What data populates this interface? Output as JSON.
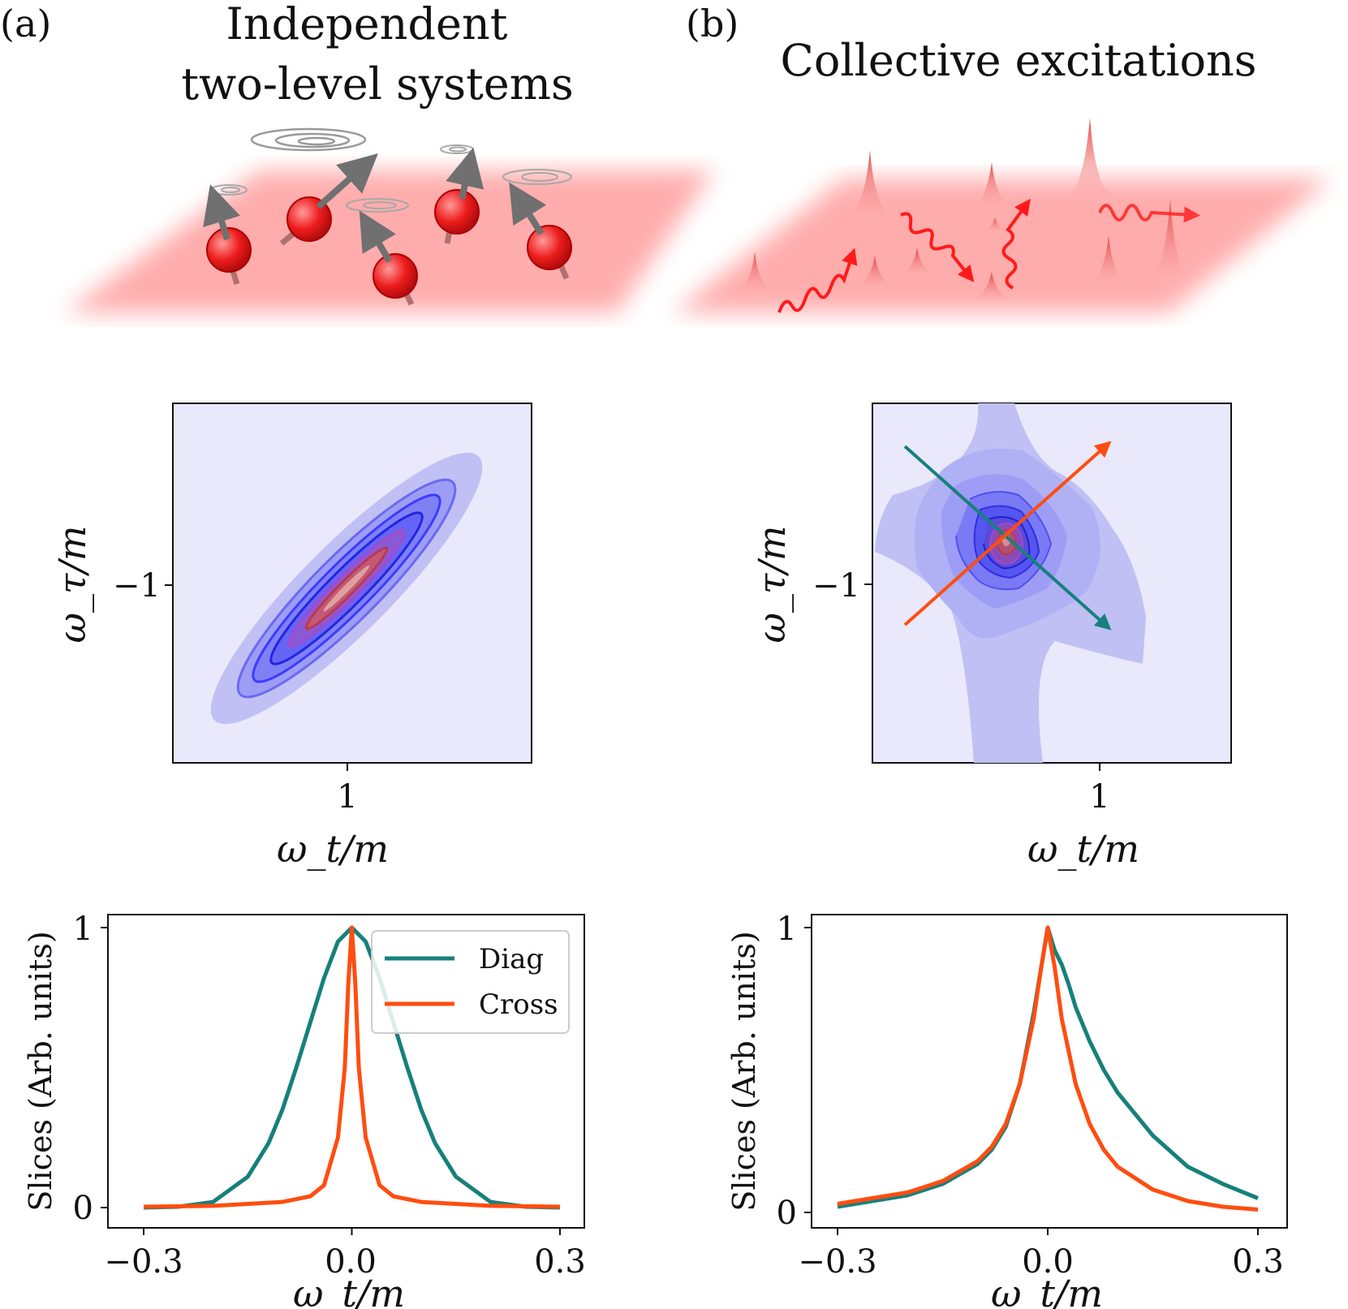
{
  "panels": {
    "a": {
      "label": "(a)",
      "title_line1": "Independent",
      "title_line2": "two-level systems"
    },
    "b": {
      "label": "(b)",
      "title": "Collective excitations"
    }
  },
  "colors": {
    "diag": "#17807b",
    "cross": "#ff4d10",
    "map_low": "#e9e9fb",
    "map_mid": "#3b3bff",
    "map_peak": "#c0384a",
    "glow": "#ff6a6a"
  },
  "icons": {
    "spin": "spin-arrow-icon",
    "swirl": "swirl-icon",
    "photon": "wavy-photon-icon",
    "peak": "excitation-peak-icon"
  },
  "maps": {
    "a": {
      "ylabel": "ω_τ/m",
      "xlabel": "ω_t/m",
      "ytick": "−1",
      "xtick": "1"
    },
    "b": {
      "ylabel": "ω_τ/m",
      "xlabel": "ω_t/m",
      "ytick": "−1",
      "xtick": "1"
    }
  },
  "chart_data": [
    {
      "type": "line",
      "panel": "a",
      "xlabel": "ω_t/m",
      "ylabel": "Slices (Arb. units)",
      "xlim": [
        -0.3,
        0.3
      ],
      "ylim": [
        0,
        1
      ],
      "xticks": [
        "−0.3",
        "0.0",
        "0.3"
      ],
      "yticks": [
        "0",
        "1"
      ],
      "legend": "top-right",
      "series": [
        {
          "name": "Diag",
          "color": "#17807b",
          "x": [
            -0.3,
            -0.25,
            -0.2,
            -0.15,
            -0.12,
            -0.1,
            -0.08,
            -0.06,
            -0.04,
            -0.02,
            0,
            0.02,
            0.04,
            0.06,
            0.08,
            0.1,
            0.12,
            0.15,
            0.2,
            0.25,
            0.3
          ],
          "y": [
            0.0,
            0.003,
            0.02,
            0.11,
            0.23,
            0.35,
            0.5,
            0.66,
            0.82,
            0.95,
            1.0,
            0.95,
            0.82,
            0.66,
            0.5,
            0.35,
            0.23,
            0.11,
            0.02,
            0.003,
            0.0
          ]
        },
        {
          "name": "Cross",
          "color": "#ff4d10",
          "x": [
            -0.3,
            -0.2,
            -0.1,
            -0.06,
            -0.04,
            -0.02,
            -0.01,
            -0.005,
            0,
            0.005,
            0.01,
            0.02,
            0.04,
            0.06,
            0.1,
            0.2,
            0.3
          ],
          "y": [
            0.003,
            0.006,
            0.02,
            0.04,
            0.08,
            0.25,
            0.5,
            0.8,
            1.0,
            0.8,
            0.5,
            0.25,
            0.08,
            0.04,
            0.02,
            0.006,
            0.003
          ]
        }
      ]
    },
    {
      "type": "line",
      "panel": "b",
      "xlabel": "ω_t/m",
      "ylabel": "Slices (Arb. units)",
      "xlim": [
        -0.3,
        0.3
      ],
      "ylim": [
        0,
        1
      ],
      "xticks": [
        "−0.3",
        "0.0",
        "0.3"
      ],
      "yticks": [
        "0",
        "1"
      ],
      "series": [
        {
          "name": "Diag",
          "color": "#17807b",
          "x": [
            -0.3,
            -0.2,
            -0.15,
            -0.1,
            -0.08,
            -0.06,
            -0.04,
            -0.02,
            -0.01,
            0,
            0.01,
            0.02,
            0.03,
            0.04,
            0.06,
            0.08,
            0.1,
            0.15,
            0.2,
            0.25,
            0.3
          ],
          "y": [
            0.02,
            0.06,
            0.1,
            0.17,
            0.22,
            0.3,
            0.45,
            0.7,
            0.85,
            1.0,
            0.92,
            0.87,
            0.8,
            0.72,
            0.6,
            0.5,
            0.42,
            0.27,
            0.16,
            0.1,
            0.05
          ]
        },
        {
          "name": "Cross",
          "color": "#ff4d10",
          "x": [
            -0.3,
            -0.2,
            -0.15,
            -0.1,
            -0.08,
            -0.06,
            -0.04,
            -0.02,
            -0.01,
            0,
            0.01,
            0.02,
            0.04,
            0.06,
            0.08,
            0.1,
            0.15,
            0.2,
            0.25,
            0.3
          ],
          "y": [
            0.03,
            0.07,
            0.11,
            0.18,
            0.23,
            0.31,
            0.45,
            0.68,
            0.85,
            1.0,
            0.86,
            0.68,
            0.45,
            0.31,
            0.22,
            0.16,
            0.08,
            0.04,
            0.02,
            0.01
          ]
        }
      ]
    }
  ]
}
